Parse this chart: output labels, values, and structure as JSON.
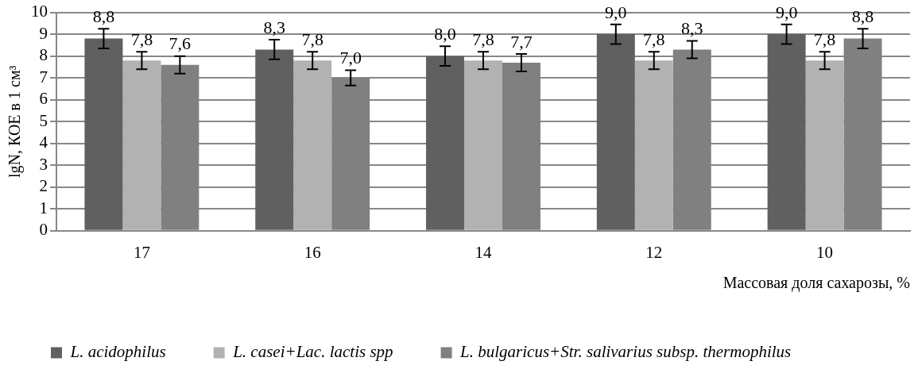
{
  "chart_data": {
    "type": "bar",
    "xlabel": "Массовая доля сахарозы, %",
    "ylabel": "lgN, КОЕ в 1 см³",
    "categories": [
      "17",
      "16",
      "14",
      "12",
      "10"
    ],
    "series": [
      {
        "name": "L. acidophilus",
        "color": "#606060",
        "values": [
          8.8,
          8.3,
          8.0,
          9.0,
          9.0
        ],
        "errors": [
          0.45,
          0.45,
          0.45,
          0.45,
          0.45
        ],
        "value_labels": [
          "8,8",
          "8,3",
          "8,0",
          "9,0",
          "9,0"
        ]
      },
      {
        "name": "L. casei+Lac. lactis spp",
        "color": "#b2b2b2",
        "values": [
          7.8,
          7.8,
          7.8,
          7.8,
          7.8
        ],
        "errors": [
          0.4,
          0.4,
          0.4,
          0.4,
          0.4
        ],
        "value_labels": [
          "7,8",
          "7,8",
          "7,8",
          "7,8",
          "7,8"
        ]
      },
      {
        "name": "L. bulgaricus+Str. salivarius subsp. thermophilus",
        "color": "#808080",
        "values": [
          7.6,
          7.0,
          7.7,
          8.3,
          8.8
        ],
        "errors": [
          0.4,
          0.35,
          0.4,
          0.4,
          0.45
        ],
        "value_labels": [
          "7,6",
          "7,0",
          "7,7",
          "8,3",
          "8,8"
        ]
      }
    ],
    "ylim": [
      0,
      10
    ],
    "yticks": [
      0,
      1,
      2,
      3,
      4,
      5,
      6,
      7,
      8,
      9,
      10
    ],
    "grid": "y",
    "legend": "bottom"
  }
}
